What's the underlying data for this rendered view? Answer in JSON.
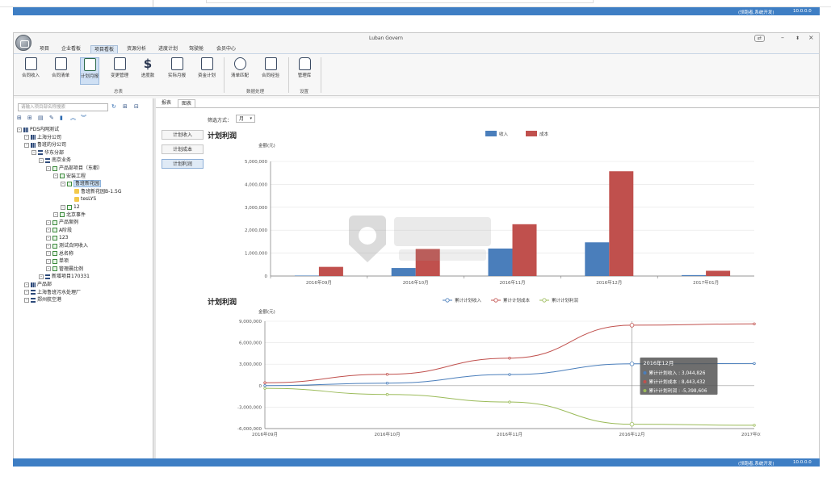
{
  "status_bar": {
    "text": "(领跑者,系统开发)",
    "version": "10.0.0.0"
  },
  "window": {
    "title": "Luban Govern"
  },
  "menu_tabs": [
    {
      "label": "项目",
      "active": false
    },
    {
      "label": "企业看板",
      "active": false
    },
    {
      "label": "项目看板",
      "active": true
    },
    {
      "label": "资源分析",
      "active": false
    },
    {
      "label": "进度计划",
      "active": false
    },
    {
      "label": "驾驶舱",
      "active": false
    },
    {
      "label": "会员中心",
      "active": false
    }
  ],
  "ribbon": {
    "buttons": [
      {
        "label": "合同收入",
        "icon": "contract-income-icon"
      },
      {
        "label": "合同清单",
        "icon": "contract-list-icon"
      },
      {
        "label": "计划月报",
        "icon": "plan-monthly-icon",
        "active": true
      },
      {
        "label": "变更管理",
        "icon": "change-management-icon"
      },
      {
        "label": "进度款",
        "icon": "dollar-icon"
      },
      {
        "label": "实际月报",
        "icon": "actual-monthly-icon"
      },
      {
        "label": "资金计划",
        "icon": "fund-plan-icon"
      },
      {
        "label": "清单匹配",
        "icon": "hourglass-icon"
      },
      {
        "label": "合同经验",
        "icon": "contract-experience-icon"
      },
      {
        "label": "管理库",
        "icon": "database-icon"
      }
    ],
    "groups": [
      {
        "label": "总表"
      },
      {
        "label": "数据处理"
      },
      {
        "label": "设置"
      }
    ]
  },
  "left_panel": {
    "search_placeholder": "请输入项目部名称搜索",
    "tree": [
      {
        "label": "PDS内网测试",
        "level": 0,
        "icon": "org"
      },
      {
        "label": "上海分公司",
        "level": 1,
        "icon": "org"
      },
      {
        "label": "鲁班的分公司",
        "level": 1,
        "icon": "org"
      },
      {
        "label": "华东分部",
        "level": 2,
        "icon": "list"
      },
      {
        "label": "南京业务",
        "level": 3,
        "icon": "list"
      },
      {
        "label": "产品部项目（东都）",
        "level": 4,
        "icon": "box"
      },
      {
        "label": "安装工程",
        "level": 5,
        "icon": "box"
      },
      {
        "label": "鲁班新花园",
        "level": 6,
        "icon": "box",
        "selected": true
      },
      {
        "label": "鲁班新花园B-1.5G",
        "level": 7,
        "icon": "folder"
      },
      {
        "label": "tesLYS",
        "level": 7,
        "icon": "folder"
      },
      {
        "label": "12",
        "level": 6,
        "icon": "box"
      },
      {
        "label": "北京事件",
        "level": 5,
        "icon": "box"
      },
      {
        "label": "产品案例",
        "level": 4,
        "icon": "box"
      },
      {
        "label": "A阶段",
        "level": 4,
        "icon": "box"
      },
      {
        "label": "123",
        "level": 4,
        "icon": "box"
      },
      {
        "label": "测试合同收入",
        "level": 4,
        "icon": "box"
      },
      {
        "label": "总名称",
        "level": 4,
        "icon": "box"
      },
      {
        "label": "单项",
        "level": 4,
        "icon": "box"
      },
      {
        "label": "管理晨比例",
        "level": 4,
        "icon": "box"
      },
      {
        "label": "新增项目170331",
        "level": 3,
        "icon": "list"
      },
      {
        "label": "产品部",
        "level": 1,
        "icon": "org"
      },
      {
        "label": "上海鲁班污水处理厂",
        "level": 1,
        "icon": "list"
      },
      {
        "label": "郑州航空港",
        "level": 1,
        "icon": "list"
      }
    ]
  },
  "right_panel": {
    "tabs": [
      {
        "label": "报表",
        "active": false
      },
      {
        "label": "图表",
        "active": true
      }
    ],
    "filter_label": "筛选方式：",
    "filter_value": "月",
    "side_buttons": [
      {
        "label": "计划收入",
        "active": false
      },
      {
        "label": "计划成本",
        "active": false
      },
      {
        "label": "计划利润",
        "active": true
      }
    ]
  },
  "chart_data": [
    {
      "type": "bar",
      "title": "计划利润",
      "ylabel": "金额(元)",
      "categories": [
        "2016年09月",
        "2016年10月",
        "2016年11月",
        "2016年12月",
        "2017年01月"
      ],
      "series": [
        {
          "name": "收入",
          "color": "#4a7ebb",
          "values": [
            20000,
            350000,
            1200000,
            1470000,
            40000
          ]
        },
        {
          "name": "成本",
          "color": "#c0504d",
          "values": [
            400000,
            1180000,
            2260000,
            4570000,
            230000
          ]
        }
      ],
      "ylim": [
        0,
        5000000
      ],
      "yticks": [
        "0",
        "1,000,000",
        "2,000,000",
        "3,000,000",
        "4,000,000",
        "5,000,000"
      ],
      "legend": "top"
    },
    {
      "type": "line",
      "title": "计划利润",
      "ylabel": "金额(元)",
      "categories": [
        "2016年09月",
        "2016年10月",
        "2016年11月",
        "2016年12月",
        "2017年01月"
      ],
      "series": [
        {
          "name": "累计计划收入",
          "color": "#4a7ebb",
          "values": [
            0,
            350000,
            1550000,
            3044826,
            3090000
          ]
        },
        {
          "name": "累计计划成本",
          "color": "#c0504d",
          "values": [
            400000,
            1580000,
            3840000,
            8443432,
            8630000
          ]
        },
        {
          "name": "累计计划利润",
          "color": "#9bbb59",
          "values": [
            -380000,
            -1230000,
            -2290000,
            -5398606,
            -5540000
          ]
        }
      ],
      "ylim": [
        -6000000,
        9000000
      ],
      "yticks": [
        "-6,000,000",
        "-3,000,000",
        "0",
        "3,000,000",
        "6,000,000",
        "9,000,000"
      ],
      "legend": "top",
      "tooltip": {
        "title": "2016年12月",
        "lines": [
          "累计计划收入 : 3,044,826",
          "累计计划成本 : 8,443,432",
          "累计计划利润 : -5,398,606"
        ]
      }
    }
  ]
}
